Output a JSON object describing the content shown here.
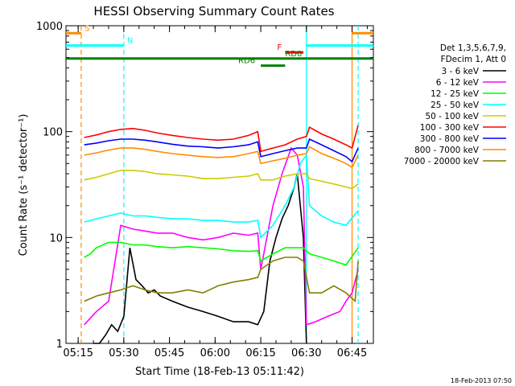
{
  "chart_data": {
    "type": "line",
    "title": "HESSI Observing Summary Count Rates",
    "xlabel": "Start Time (18-Feb-13 05:11:42)",
    "ylabel": "Count Rate (s⁻¹ detector⁻¹)",
    "y_scale": "log",
    "ylim": [
      1,
      1000
    ],
    "xlim_minutes_after_0511": [
      0,
      101
    ],
    "x_ticks": [
      {
        "label": "05:15",
        "t": 4
      },
      {
        "label": "05:30",
        "t": 19
      },
      {
        "label": "05:45",
        "t": 34
      },
      {
        "label": "06:00",
        "t": 49
      },
      {
        "label": "06:15",
        "t": 64
      },
      {
        "label": "06:30",
        "t": 79
      },
      {
        "label": "06:45",
        "t": 94
      }
    ],
    "y_ticks": [
      {
        "label": "1",
        "v": 1
      },
      {
        "label": "10",
        "v": 10
      },
      {
        "label": "100",
        "v": 100
      },
      {
        "label": "1000",
        "v": 1000
      }
    ],
    "legend_header": [
      "Det 1,3,5,6,7,9,",
      "FDecim 1, Att 0"
    ],
    "legend_placement": "right",
    "timestamp": "18-Feb-2013 07:50",
    "series": [
      {
        "name": "3 - 6 keV",
        "color": "#000000",
        "x": [
          9,
          11,
          13,
          15,
          17,
          19,
          21,
          23,
          25,
          27,
          29,
          31,
          35,
          40,
          45,
          50,
          55,
          60,
          63,
          65,
          67,
          69,
          71,
          73,
          75,
          76,
          78,
          79
        ],
        "y": [
          1,
          1,
          1.2,
          1.5,
          1.3,
          1.8,
          8,
          4,
          3.5,
          3,
          3.2,
          2.8,
          2.5,
          2.2,
          2,
          1.8,
          1.6,
          1.6,
          1.5,
          2,
          6,
          10,
          15,
          20,
          30,
          40,
          10,
          1
        ]
      },
      {
        "name": "6 - 12 keV",
        "color": "#ff00ff",
        "x": [
          6,
          10,
          14,
          18,
          22,
          26,
          30,
          35,
          40,
          45,
          50,
          55,
          60,
          63,
          64,
          68,
          71,
          74,
          76,
          78,
          79,
          82,
          86,
          90,
          92,
          94,
          96
        ],
        "y": [
          1.5,
          2,
          2.5,
          13,
          12,
          11.5,
          11,
          11,
          10,
          9.5,
          10,
          11,
          10.5,
          11,
          5,
          20,
          40,
          70,
          60,
          30,
          1.5,
          1.6,
          1.8,
          2,
          2.5,
          3,
          5
        ]
      },
      {
        "name": "12 - 25 keV",
        "color": "#00ff00",
        "x": [
          6,
          8,
          10,
          14,
          18,
          22,
          26,
          30,
          35,
          40,
          45,
          50,
          55,
          60,
          63,
          64,
          68,
          72,
          76,
          78,
          80,
          84,
          88,
          92,
          96
        ],
        "y": [
          6.5,
          7,
          8,
          9,
          9,
          8.5,
          8.5,
          8.2,
          8,
          8.2,
          8,
          7.8,
          7.5,
          7.4,
          7.5,
          6,
          7,
          8,
          8,
          8,
          7,
          6.5,
          6,
          5.5,
          8
        ]
      },
      {
        "name": "25 - 50 keV",
        "color": "#00ffff",
        "x": [
          6,
          10,
          14,
          18,
          22,
          26,
          30,
          35,
          40,
          45,
          50,
          55,
          60,
          63,
          64,
          68,
          72,
          75,
          77,
          79,
          80,
          84,
          88,
          92,
          96
        ],
        "y": [
          14,
          15,
          16,
          17,
          16,
          16,
          15.5,
          15,
          15,
          14.5,
          14.5,
          14,
          14,
          14.5,
          10,
          13,
          20,
          30,
          50,
          60,
          20,
          16,
          14,
          13,
          18
        ]
      },
      {
        "name": "50 - 100 keV",
        "color": "#cccc00",
        "x": [
          6,
          10,
          14,
          18,
          22,
          26,
          30,
          35,
          40,
          45,
          50,
          55,
          60,
          63,
          64,
          68,
          72,
          76,
          79,
          80,
          84,
          88,
          92,
          94,
          96
        ],
        "y": [
          35,
          37,
          40,
          43,
          43,
          42,
          40,
          39,
          38,
          36,
          36,
          37,
          38,
          40,
          35,
          35,
          38,
          40,
          40,
          36,
          34,
          32,
          30,
          29,
          32
        ]
      },
      {
        "name": "100 - 300 keV",
        "color": "#ff0000",
        "x": [
          6,
          10,
          14,
          18,
          22,
          26,
          30,
          35,
          40,
          45,
          50,
          55,
          60,
          63,
          64,
          68,
          72,
          76,
          79,
          80,
          84,
          88,
          92,
          94,
          96
        ],
        "y": [
          88,
          93,
          100,
          105,
          107,
          103,
          97,
          92,
          88,
          85,
          83,
          85,
          92,
          100,
          65,
          70,
          75,
          85,
          90,
          110,
          95,
          85,
          75,
          70,
          115
        ]
      },
      {
        "name": "300 - 800 keV",
        "color": "#0000ff",
        "x": [
          6,
          10,
          14,
          18,
          22,
          26,
          30,
          35,
          40,
          45,
          50,
          55,
          60,
          63,
          64,
          68,
          72,
          76,
          79,
          80,
          84,
          88,
          92,
          94,
          96
        ],
        "y": [
          75,
          78,
          82,
          85,
          85,
          83,
          80,
          76,
          73,
          72,
          70,
          72,
          75,
          80,
          58,
          62,
          66,
          70,
          70,
          85,
          75,
          66,
          58,
          52,
          70
        ]
      },
      {
        "name": "800 - 7000 keV",
        "color": "#ff8c00",
        "x": [
          6,
          10,
          14,
          18,
          22,
          26,
          30,
          35,
          40,
          45,
          50,
          55,
          60,
          63,
          64,
          68,
          72,
          76,
          79,
          80,
          84,
          88,
          92,
          94,
          96
        ],
        "y": [
          60,
          63,
          67,
          70,
          70,
          68,
          65,
          62,
          60,
          58,
          57,
          58,
          62,
          65,
          50,
          53,
          56,
          60,
          62,
          72,
          62,
          56,
          50,
          46,
          60
        ]
      },
      {
        "name": "7000 - 20000 keV",
        "color": "#808000",
        "x": [
          6,
          10,
          14,
          18,
          22,
          26,
          30,
          35,
          40,
          45,
          50,
          55,
          60,
          63,
          64,
          68,
          72,
          76,
          78,
          80,
          84,
          88,
          92,
          95,
          96
        ],
        "y": [
          2.5,
          2.8,
          3,
          3.2,
          3.5,
          3.2,
          3,
          3,
          3.2,
          3,
          3.5,
          3.8,
          4,
          4.2,
          5,
          6,
          6.5,
          6.5,
          6,
          3,
          3,
          3.5,
          3,
          2.5,
          6
        ]
      }
    ],
    "annotations": [
      {
        "label": "S",
        "color": "#ff8c00",
        "x_start": 0,
        "x_end": 5,
        "y": 850
      },
      {
        "label": "N",
        "color": "#00ffff",
        "x_start": 0,
        "x_end": 19,
        "y": 650
      },
      {
        "label": "F",
        "color": "#ff0000",
        "x_start": 72,
        "x_end": 78,
        "y": 560
      },
      {
        "label": "RD0",
        "color": "#008000",
        "x_start": 0,
        "x_end": 101,
        "y": 490
      },
      {
        "label": "RD6",
        "color": "#008000",
        "x_start": 64,
        "x_end": 72,
        "y": 420
      }
    ],
    "bars_right": [
      {
        "color": "#ff8c00",
        "x_start": 94,
        "x_end": 101,
        "y": 850
      },
      {
        "color": "#00ffff",
        "x_start": 79,
        "x_end": 101,
        "y": 650
      }
    ],
    "vertical_lines": [
      {
        "color": "#ff8c00",
        "x": 5,
        "style": "dashed"
      },
      {
        "color": "#00ffff",
        "x": 19,
        "style": "dashed"
      },
      {
        "color": "#00ffff",
        "x": 79,
        "style": "solid"
      },
      {
        "color": "#ff8c00",
        "x": 94,
        "style": "solid"
      },
      {
        "color": "#00ffff",
        "x": 96,
        "style": "dashed"
      }
    ]
  }
}
